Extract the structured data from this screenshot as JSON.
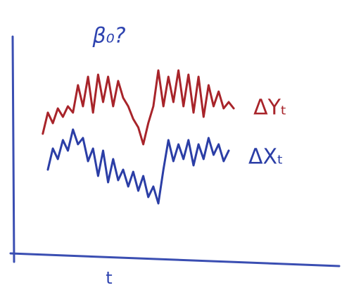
{
  "chart_data": {
    "type": "line",
    "annotation": "β₀?",
    "x_label": "t",
    "x": [
      0,
      1,
      2,
      3,
      4,
      5,
      6,
      7,
      8,
      9,
      10,
      11,
      12,
      13,
      14,
      15,
      16,
      17,
      18,
      19,
      20,
      21,
      22,
      23,
      24,
      25,
      26,
      27,
      28,
      29,
      30,
      31,
      32,
      33,
      34,
      35,
      36,
      37,
      38
    ],
    "xlim": [
      -6,
      59
    ],
    "ylim": [
      0,
      100
    ],
    "series": [
      {
        "name": "ΔYₜ",
        "color": "#a8242a",
        "values": [
          50,
          60,
          55,
          62,
          58,
          63,
          60,
          73,
          63,
          77,
          60,
          78,
          65,
          77,
          63,
          75,
          67,
          63,
          57,
          53,
          45,
          55,
          63,
          80,
          63,
          77,
          65,
          80,
          63,
          78,
          60,
          77,
          58,
          73,
          63,
          70,
          62,
          65,
          62
        ]
      },
      {
        "name": "ΔXₜ",
        "color": "#2b3ea6",
        "values": [
          null,
          33,
          43,
          38,
          47,
          42,
          52,
          45,
          48,
          37,
          43,
          30,
          42,
          27,
          38,
          28,
          33,
          25,
          32,
          23,
          30,
          20,
          25,
          17,
          33,
          47,
          37,
          45,
          38,
          47,
          35,
          45,
          38,
          48,
          40,
          45,
          37,
          42,
          null
        ]
      }
    ]
  }
}
